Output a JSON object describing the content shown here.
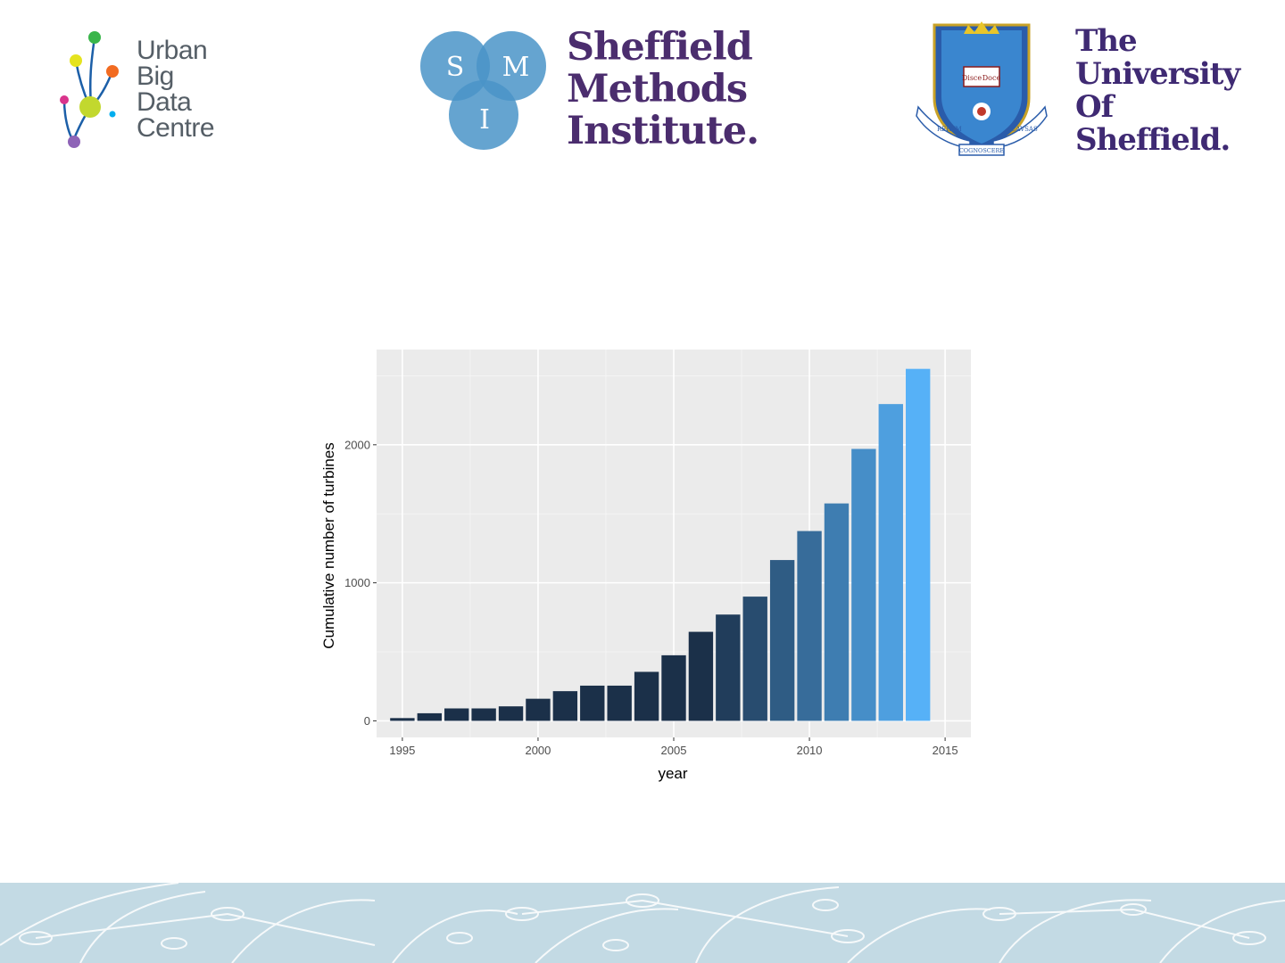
{
  "logos": {
    "ubdc": {
      "lines": [
        "Urban",
        "Big",
        "Data",
        "Centre"
      ],
      "colors": [
        "#39b54a",
        "#e5e31f",
        "#f26b21",
        "#c2d82e",
        "#d9348c",
        "#00aeef",
        "#8e63b7",
        "#1c5fa8"
      ]
    },
    "smi": {
      "circle_letters": [
        "S",
        "M",
        "I"
      ],
      "lines": [
        "Sheffield",
        "Methods",
        "Institute."
      ],
      "circle_color": "#4a94c8",
      "text_color": "#4b2d6e"
    },
    "uos": {
      "lines": [
        "The",
        "University",
        "Of",
        "Sheffield."
      ],
      "crest_text": [
        "Disce",
        "Doce",
        "RERVM",
        "COGNOSCERE",
        "CAVSAS"
      ],
      "text_color": "#3f2a73",
      "crest_color": "#2a5caa"
    }
  },
  "chart_data": {
    "type": "bar",
    "title": "",
    "xlabel": "year",
    "ylabel": "Cumulative number of turbines",
    "x": [
      1995,
      1996,
      1997,
      1998,
      1999,
      2000,
      2001,
      2002,
      2003,
      2004,
      2005,
      2006,
      2007,
      2008,
      2009,
      2010,
      2011,
      2012,
      2013,
      2014
    ],
    "values": [
      20,
      55,
      90,
      90,
      105,
      160,
      215,
      255,
      255,
      355,
      475,
      645,
      770,
      900,
      1165,
      1375,
      1575,
      1970,
      2295,
      2550
    ],
    "xlim": [
      1994.05,
      1915.95
    ],
    "x_ticks": [
      1995,
      2000,
      2005,
      2010,
      2015
    ],
    "ylim": [
      -120,
      2690
    ],
    "y_ticks": [
      0,
      1000,
      2000
    ],
    "grid": true,
    "fill_gradient": [
      "#1b3049",
      "#56b1f7"
    ],
    "background": "#ebebeb"
  }
}
